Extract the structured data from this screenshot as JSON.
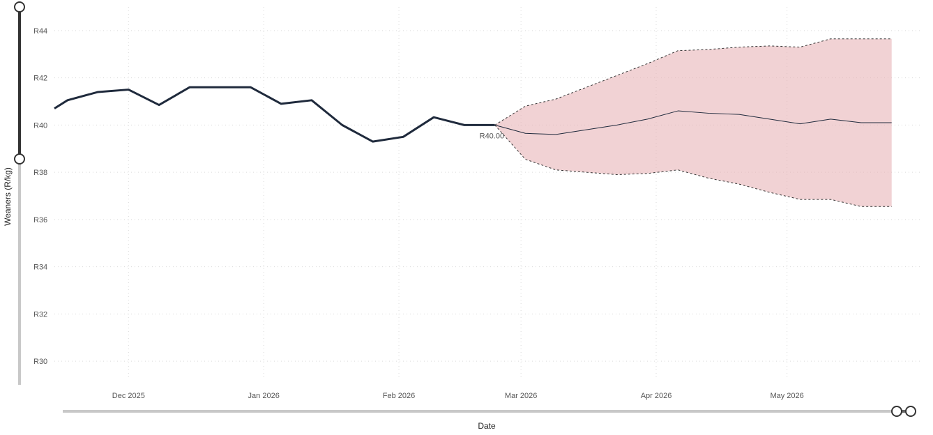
{
  "chart_data": {
    "type": "line",
    "xlabel": "Date",
    "ylabel": "Weaners (R/kg)",
    "ylim": [
      29,
      45
    ],
    "y_ticks": [
      30,
      32,
      34,
      36,
      38,
      40,
      42,
      44
    ],
    "y_tick_labels": [
      "R30",
      "R32",
      "R34",
      "R36",
      "R38",
      "R40",
      "R42",
      "R44"
    ],
    "x_ticks": [
      "2025-12-01",
      "2026-01-01",
      "2026-02-01",
      "2026-03-01",
      "2026-04-01",
      "2026-05-01"
    ],
    "x_tick_labels": [
      "Dec 2025",
      "Jan 2026",
      "Feb 2026",
      "Mar 2026",
      "Apr 2026",
      "May 2026"
    ],
    "xlim": [
      "2025-11-14",
      "2026-05-30"
    ],
    "grid": true,
    "series": [
      {
        "style": "historical",
        "color": "#1f2a3c",
        "x": [
          "2025-11-14",
          "2025-11-17",
          "2025-11-24",
          "2025-12-01",
          "2025-12-08",
          "2025-12-15",
          "2025-12-22",
          "2025-12-29",
          "2026-01-05",
          "2026-01-12",
          "2026-01-19",
          "2026-01-26",
          "2026-02-02",
          "2026-02-09",
          "2026-02-16",
          "2026-02-23"
        ],
        "values": [
          40.7,
          41.05,
          41.4,
          41.5,
          40.85,
          41.6,
          41.6,
          41.6,
          40.9,
          41.05,
          40.0,
          39.3,
          39.5,
          40.33,
          40.0,
          40.0
        ]
      },
      {
        "style": "forecast",
        "color": "#1f2a3c",
        "x": [
          "2026-02-23",
          "2026-03-02",
          "2026-03-09",
          "2026-03-16",
          "2026-03-23",
          "2026-03-30",
          "2026-04-06",
          "2026-04-13",
          "2026-04-20",
          "2026-04-27",
          "2026-05-04",
          "2026-05-11",
          "2026-05-18",
          "2026-05-25"
        ],
        "values": [
          40.0,
          39.65,
          39.6,
          39.8,
          40.0,
          40.25,
          40.6,
          40.5,
          40.45,
          40.25,
          40.05,
          40.25,
          40.1,
          40.1
        ]
      }
    ],
    "band": {
      "color": "#e8b4b8",
      "x": [
        "2026-02-23",
        "2026-03-02",
        "2026-03-09",
        "2026-03-16",
        "2026-03-23",
        "2026-03-30",
        "2026-04-06",
        "2026-04-13",
        "2026-04-20",
        "2026-04-27",
        "2026-05-04",
        "2026-05-11",
        "2026-05-18",
        "2026-05-25"
      ],
      "upper": [
        40.0,
        40.8,
        41.1,
        41.6,
        42.1,
        42.6,
        43.15,
        43.2,
        43.3,
        43.35,
        43.3,
        43.65,
        43.65,
        43.65
      ],
      "lower": [
        40.0,
        38.55,
        38.1,
        38.0,
        37.9,
        37.95,
        38.1,
        37.75,
        37.5,
        37.15,
        36.85,
        36.85,
        36.55,
        36.55
      ]
    },
    "annotation": {
      "text": "R40.00",
      "x": "2026-02-23",
      "y": 40.0
    }
  }
}
